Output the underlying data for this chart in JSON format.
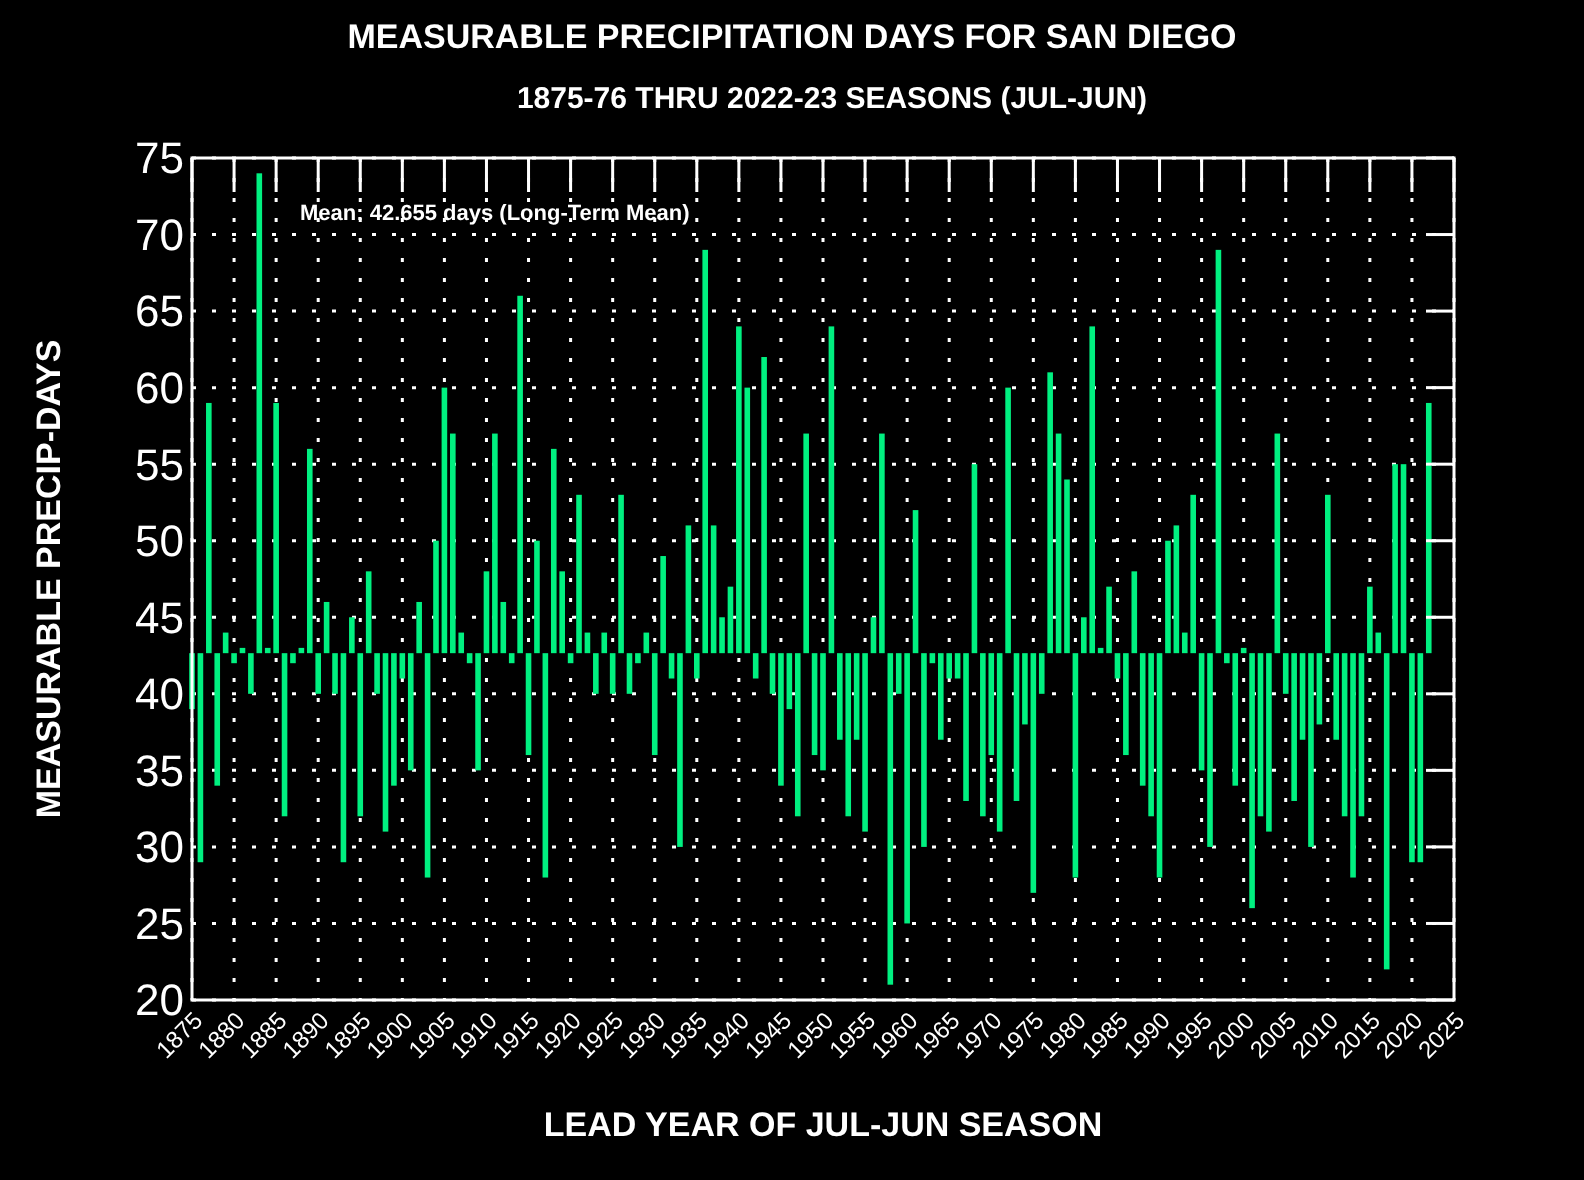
{
  "chart_data": {
    "type": "bar",
    "title": "MEASURABLE PRECIPITATION DAYS FOR SAN DIEGO",
    "subtitle": "1875-76 THRU 2022-23 SEASONS (JUL-JUN)",
    "xlabel": "LEAD YEAR OF JUL-JUN SEASON",
    "ylabel": "MEASURABLE PRECIP-DAYS",
    "annotations": [
      "Mean: 42.655 days (Long-Term Mean)"
    ],
    "x": [
      1875,
      1876,
      1877,
      1878,
      1879,
      1880,
      1881,
      1882,
      1883,
      1884,
      1885,
      1886,
      1887,
      1888,
      1889,
      1890,
      1891,
      1892,
      1893,
      1894,
      1895,
      1896,
      1897,
      1898,
      1899,
      1900,
      1901,
      1902,
      1903,
      1904,
      1905,
      1906,
      1907,
      1908,
      1909,
      1910,
      1911,
      1912,
      1913,
      1914,
      1915,
      1916,
      1917,
      1918,
      1919,
      1920,
      1921,
      1922,
      1923,
      1924,
      1925,
      1926,
      1927,
      1928,
      1929,
      1930,
      1931,
      1932,
      1933,
      1934,
      1935,
      1936,
      1937,
      1938,
      1939,
      1940,
      1941,
      1942,
      1943,
      1944,
      1945,
      1946,
      1947,
      1948,
      1949,
      1950,
      1951,
      1952,
      1953,
      1954,
      1955,
      1956,
      1957,
      1958,
      1959,
      1960,
      1961,
      1962,
      1963,
      1964,
      1965,
      1966,
      1967,
      1968,
      1969,
      1970,
      1971,
      1972,
      1973,
      1974,
      1975,
      1976,
      1977,
      1978,
      1979,
      1980,
      1981,
      1982,
      1983,
      1984,
      1985,
      1986,
      1987,
      1988,
      1989,
      1990,
      1991,
      1992,
      1993,
      1994,
      1995,
      1996,
      1997,
      1998,
      1999,
      2000,
      2001,
      2002,
      2003,
      2004,
      2005,
      2006,
      2007,
      2008,
      2009,
      2010,
      2011,
      2012,
      2013,
      2014,
      2015,
      2016,
      2017,
      2018,
      2019,
      2020,
      2021,
      2022
    ],
    "values": [
      -3.655,
      -13.655,
      16.345,
      -8.655,
      1.345,
      -0.655,
      0.345,
      -2.655,
      31.345,
      0.345,
      16.345,
      -10.655,
      -0.655,
      0.345,
      13.345,
      -2.655,
      3.345,
      -2.655,
      -13.655,
      2.345,
      -10.655,
      5.345,
      -2.655,
      -11.655,
      -8.655,
      -1.655,
      -7.655,
      3.345,
      -14.655,
      7.345,
      17.345,
      14.345,
      1.345,
      -0.655,
      -7.655,
      5.345,
      14.345,
      3.345,
      -0.655,
      23.345,
      -6.655,
      7.345,
      -14.655,
      13.345,
      5.345,
      -0.655,
      10.345,
      1.345,
      -2.655,
      1.345,
      -2.655,
      10.345,
      -2.655,
      -0.655,
      1.345,
      -6.655,
      6.345,
      -1.655,
      -12.655,
      8.345,
      -1.655,
      26.345,
      8.345,
      2.345,
      4.345,
      21.345,
      17.345,
      -1.655,
      19.345,
      -2.655,
      -8.655,
      -3.655,
      -10.655,
      14.345,
      -6.655,
      -7.655,
      21.345,
      -5.655,
      -10.655,
      -5.655,
      -11.655,
      2.345,
      14.345,
      -21.655,
      -2.655,
      -17.655,
      9.345,
      -12.655,
      -0.655,
      -5.655,
      -1.655,
      -1.655,
      -9.655,
      12.345,
      -10.655,
      -6.655,
      -11.655,
      17.345,
      -9.655,
      -4.655,
      -15.655,
      -2.655,
      18.345,
      14.345,
      11.345,
      -14.655,
      2.345,
      21.345,
      0.345,
      4.345,
      -1.655,
      -6.655,
      5.345,
      -8.655,
      -10.655,
      -14.655,
      7.345,
      8.345,
      1.345,
      10.345,
      -7.655,
      -12.655,
      26.345,
      -0.655,
      -8.655,
      0.345,
      -16.655,
      -10.655,
      -11.655,
      14.345,
      -2.655,
      -9.655,
      -5.655,
      -12.655,
      -4.655,
      10.345,
      -5.655,
      -10.655,
      -14.655,
      -10.655,
      4.345,
      1.345,
      -20.655,
      12.345,
      12.345,
      -13.655,
      -13.655,
      16.345
    ],
    "base": [
      42.655,
      42.655,
      42.655,
      42.655,
      42.655,
      42.655,
      42.655,
      42.655,
      42.655,
      42.655,
      42.655,
      42.655,
      42.655,
      42.655,
      42.655,
      42.655,
      42.655,
      42.655,
      42.655,
      42.655,
      42.655,
      42.655,
      42.655,
      42.655,
      42.655,
      42.655,
      42.655,
      42.655,
      42.655,
      42.655,
      42.655,
      42.655,
      42.655,
      42.655,
      42.655,
      42.655,
      42.655,
      42.655,
      42.655,
      42.655,
      42.655,
      42.655,
      42.655,
      42.655,
      42.655,
      42.655,
      42.655,
      42.655,
      42.655,
      42.655,
      42.655,
      42.655,
      42.655,
      42.655,
      42.655,
      42.655,
      42.655,
      42.655,
      42.655,
      42.655,
      42.655,
      42.655,
      42.655,
      42.655,
      42.655,
      42.655,
      42.655,
      42.655,
      42.655,
      42.655,
      42.655,
      42.655,
      42.655,
      42.655,
      42.655,
      42.655,
      42.655,
      42.655,
      42.655,
      42.655,
      42.655,
      42.655,
      42.655,
      42.655,
      42.655,
      42.655,
      42.655,
      42.655,
      42.655,
      42.655,
      42.655,
      42.655,
      42.655,
      42.655,
      42.655,
      42.655,
      42.655,
      42.655,
      42.655,
      42.655,
      42.655,
      42.655,
      42.655,
      42.655,
      42.655,
      42.655,
      42.655,
      42.655,
      42.655,
      42.655,
      42.655,
      42.655,
      42.655,
      42.655,
      42.655,
      42.655,
      42.655,
      42.655,
      42.655,
      42.655,
      42.655,
      42.655,
      42.655,
      42.655,
      42.655,
      42.655,
      42.655,
      42.655,
      42.655,
      42.655,
      42.655,
      42.655,
      42.655,
      42.655,
      42.655,
      42.655,
      42.655,
      42.655,
      42.655,
      42.655,
      42.655,
      42.655,
      42.655,
      42.655,
      42.655,
      42.655,
      42.655,
      42.655
    ],
    "color": "#00f080",
    "xlim": [
      1875,
      2025
    ],
    "xticks": [
      1875,
      1880,
      1885,
      1890,
      1895,
      1900,
      1905,
      1910,
      1915,
      1920,
      1925,
      1930,
      1935,
      1940,
      1945,
      1950,
      1955,
      1960,
      1965,
      1970,
      1975,
      1980,
      1985,
      1990,
      1995,
      2000,
      2005,
      2010,
      2015,
      2020,
      2025
    ],
    "ylim": [
      20,
      75
    ],
    "yticks": [
      20,
      25,
      30,
      35,
      40,
      45,
      50,
      55,
      60,
      65,
      70,
      75
    ],
    "grid": true
  }
}
